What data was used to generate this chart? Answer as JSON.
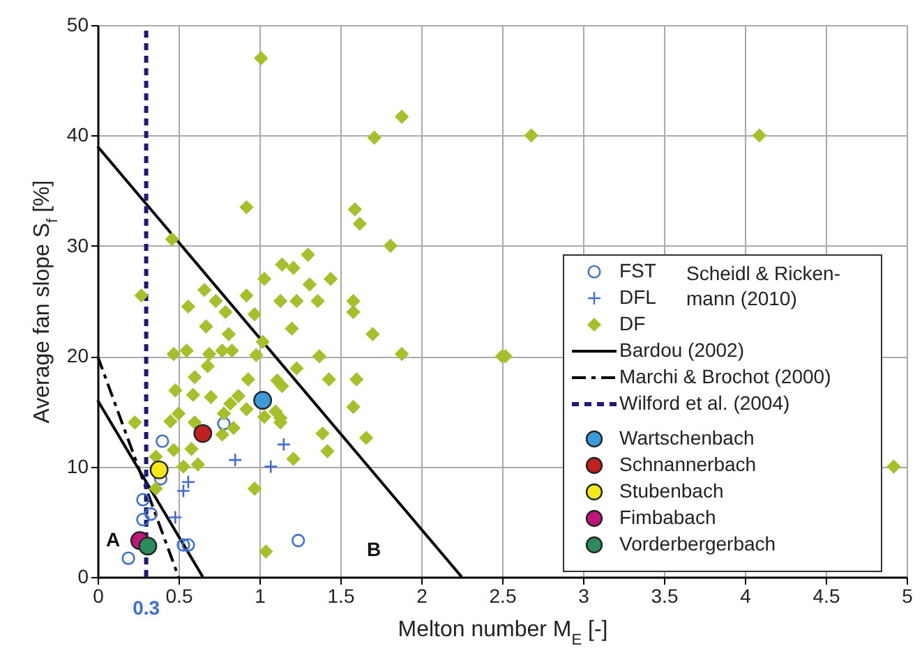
{
  "chart_data": {
    "type": "scatter",
    "xlabel": "Melton number M$_{E}$ [-]",
    "ylabel": "Average fan slope S$_{f}$ [%]",
    "xlim": [
      0,
      5
    ],
    "ylim": [
      0,
      50
    ],
    "xticks": [
      0,
      0.5,
      1,
      1.5,
      2,
      2.5,
      3,
      3.5,
      4,
      4.5,
      5
    ],
    "yticks": [
      0,
      10,
      20,
      30,
      40,
      50
    ],
    "grid": true,
    "legend": "bottom right",
    "annotations": [
      "A",
      "B",
      {
        "text": "0.3",
        "x": 0.3,
        "y": 0
      }
    ],
    "legend_title": "Scheidl & Ricken-\nmann (2010)",
    "series": [
      {
        "name": "FST",
        "marker": "circle",
        "color": "#3f6fd1",
        "x": [
          0.78,
          0.4,
          0.39,
          0.28,
          0.28,
          0.33,
          0.53,
          0.56,
          0.19,
          1.24
        ],
        "values": [
          13.9,
          12.3,
          8.9,
          7.0,
          5.2,
          5.7,
          2.9,
          2.9,
          1.7,
          3.3
        ]
      },
      {
        "name": "DFL",
        "marker": "cross",
        "color": "#3f6fd1",
        "x": [
          1.15,
          1.07,
          0.85,
          0.56,
          0.53,
          0.48
        ],
        "values": [
          12.0,
          10.0,
          10.6,
          8.6,
          7.8,
          5.4
        ]
      },
      {
        "name": "DF",
        "marker": "diamond",
        "color": "#a5c02a",
        "x": [
          1.01,
          1.88,
          1.71,
          2.68,
          4.09,
          0.92,
          1.59,
          1.62,
          1.81,
          0.46,
          1.3,
          1.14,
          1.21,
          1.03,
          1.44,
          1.31,
          0.27,
          0.66,
          0.56,
          0.73,
          0.92,
          0.79,
          1.13,
          1.23,
          1.36,
          1.58,
          1.58,
          0.97,
          0.67,
          0.81,
          1.2,
          1.7,
          1.02,
          0.47,
          0.55,
          0.69,
          0.77,
          0.83,
          0.98,
          1.37,
          1.88,
          2.5,
          2.52,
          0.68,
          1.23,
          0.6,
          0.93,
          1.11,
          1.14,
          1.43,
          1.6,
          0.48,
          0.59,
          0.7,
          0.87,
          0.82,
          1.58,
          0.92,
          1.1,
          1.13,
          1.03,
          0.5,
          0.45,
          0.6,
          0.78,
          0.84,
          0.77,
          1.13,
          0.23,
          1.39,
          1.66,
          1.42,
          0.47,
          0.58,
          0.36,
          1.21,
          0.53,
          0.62,
          0.36,
          0.97,
          1.04,
          4.92
        ],
        "values": [
          47.0,
          41.7,
          39.8,
          40.0,
          40.0,
          33.5,
          33.3,
          32.0,
          30.0,
          30.6,
          29.2,
          28.3,
          28.0,
          27.0,
          27.0,
          26.5,
          25.5,
          26.0,
          24.5,
          25.0,
          25.5,
          24.0,
          25.0,
          25.0,
          25.0,
          25.0,
          24.0,
          23.8,
          22.7,
          22.0,
          22.5,
          22.0,
          21.3,
          20.2,
          20.5,
          20.2,
          20.5,
          20.5,
          20.1,
          20.0,
          20.2,
          20.0,
          20.0,
          19.1,
          18.9,
          18.1,
          17.9,
          17.8,
          17.3,
          17.9,
          17.9,
          16.9,
          16.5,
          16.3,
          16.4,
          15.7,
          15.4,
          15.2,
          15.0,
          14.4,
          14.5,
          14.8,
          14.1,
          14.0,
          14.8,
          13.5,
          12.9,
          14.0,
          14.0,
          13.0,
          12.6,
          11.4,
          11.5,
          11.6,
          10.9,
          10.7,
          10.0,
          10.2,
          8.0,
          8.0,
          2.3,
          10.0
        ]
      },
      {
        "name": "Bardou (2002)",
        "type": "line",
        "line_style": "solid",
        "color": "#000000",
        "x": [
          0,
          2.25
        ],
        "values": [
          39,
          0
        ]
      },
      {
        "type": "line",
        "line_style": "solid",
        "color": "#000000",
        "x": [
          0,
          0.65
        ],
        "values": [
          16,
          0
        ]
      },
      {
        "name": "Marchi & Brochot (2000)",
        "type": "line",
        "line_style": "dashed",
        "color": "#000000",
        "x": [
          0,
          0.5
        ],
        "values": [
          20,
          0
        ]
      },
      {
        "name": "Wilford et al. (2004)",
        "type": "line",
        "line_style": "dotted",
        "color": "#1f1a78",
        "x": [
          0.3,
          0.3
        ],
        "values": [
          0,
          50
        ]
      },
      {
        "name": "Wartschenbach",
        "marker": "circle",
        "color": "#3b9ad8",
        "x": [
          1.02
        ],
        "values": [
          16.0
        ]
      },
      {
        "name": "Schnannerbach",
        "marker": "circle",
        "color": "#c0201f",
        "x": [
          0.65
        ],
        "values": [
          13.0
        ]
      },
      {
        "name": "Stubenbach",
        "marker": "circle",
        "color": "#f5e71a",
        "x": [
          0.38
        ],
        "values": [
          9.7
        ]
      },
      {
        "name": "Fimbabach",
        "marker": "circle",
        "color": "#c0157a",
        "x": [
          0.26
        ],
        "values": [
          3.3
        ]
      },
      {
        "name": "Vorderbergerbach",
        "marker": "circle",
        "color": "#2e8a5a",
        "x": [
          0.31
        ],
        "values": [
          2.8
        ]
      }
    ]
  }
}
